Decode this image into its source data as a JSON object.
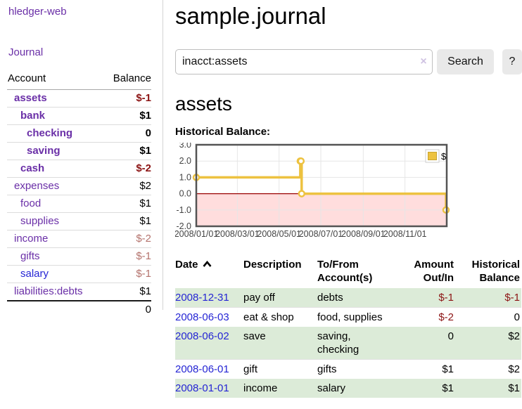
{
  "app_title": "hledger-web",
  "sidebar": {
    "journal_link": "Journal",
    "accounts": {
      "col_account": "Account",
      "col_balance": "Balance",
      "rows": [
        {
          "name": "assets",
          "balance": "$-1"
        },
        {
          "name": "bank",
          "balance": "$1"
        },
        {
          "name": "checking",
          "balance": "0"
        },
        {
          "name": "saving",
          "balance": "$1"
        },
        {
          "name": "cash",
          "balance": "$-2"
        },
        {
          "name": "expenses",
          "balance": "$2"
        },
        {
          "name": "food",
          "balance": "$1"
        },
        {
          "name": "supplies",
          "balance": "$1"
        },
        {
          "name": "income",
          "balance": "$-2"
        },
        {
          "name": "gifts",
          "balance": "$-1"
        },
        {
          "name": "salary",
          "balance": "$-1"
        },
        {
          "name": "liabilities:debts",
          "balance": "$1"
        }
      ],
      "total": "0"
    }
  },
  "main": {
    "title": "sample.journal",
    "search": {
      "value": "inacct:assets",
      "clear_icon": "×",
      "search_label": "Search",
      "help_label": "?"
    },
    "heading": "assets",
    "chart_label": "Historical Balance:",
    "register": {
      "col_date": "Date",
      "sort": "ascending",
      "col_description": "Description",
      "col_account": "To/From Account(s)",
      "col_amount": "Amount Out/In",
      "col_balance": "Historical Balance",
      "rows": [
        {
          "date": "2008-12-31",
          "description": "pay off",
          "accounts": "debts",
          "amount": "$-1",
          "balance": "$-1"
        },
        {
          "date": "2008-06-03",
          "description": "eat & shop",
          "accounts": "food, supplies",
          "amount": "$-2",
          "balance": "0"
        },
        {
          "date": "2008-06-02",
          "description": "save",
          "accounts": "saving, checking",
          "amount": "0",
          "balance": "$2"
        },
        {
          "date": "2008-06-01",
          "description": "gift",
          "accounts": "gifts",
          "amount": "$1",
          "balance": "$2"
        },
        {
          "date": "2008-01-01",
          "description": "income",
          "accounts": "salary",
          "amount": "$1",
          "balance": "$1"
        }
      ]
    }
  },
  "colors": {
    "link_purple": "#6a2fa7",
    "link_blue": "#2525d4",
    "negative_strong": "#8c1414",
    "negative_soft": "#b4736d",
    "row_stripe_green": "#dcebd8",
    "button_gray": "#e9e9e9"
  },
  "chart_data": {
    "type": "line",
    "step": true,
    "title": "Historical Balance",
    "xlabel": "",
    "ylabel": "",
    "grid": true,
    "legend_position": "top-right",
    "x_range": [
      "2008-01-01",
      "2009-01-01"
    ],
    "ylim": [
      -2.0,
      3.0
    ],
    "y_ticks": [
      -2,
      -1,
      0,
      1,
      2,
      3
    ],
    "y_tick_labels": [
      "-2.0",
      "-1.0",
      "0.0",
      "1.0",
      "2.0",
      "3.0"
    ],
    "x_ticks": [
      {
        "date": "2008-01-01",
        "label": "2008/01/01"
      },
      {
        "date": "2008-03-01",
        "label": "2008/03/01"
      },
      {
        "date": "2008-05-01",
        "label": "2008/05/01"
      },
      {
        "date": "2008-07-01",
        "label": "2008/07/01"
      },
      {
        "date": "2008-09-01",
        "label": "2008/09/01"
      },
      {
        "date": "2008-11-01",
        "label": "2008/11/01"
      }
    ],
    "series": [
      {
        "name": "$",
        "points": [
          {
            "date": "2008-01-01",
            "value": 1
          },
          {
            "date": "2008-06-01",
            "value": 2
          },
          {
            "date": "2008-06-02",
            "value": 2
          },
          {
            "date": "2008-06-03",
            "value": 0
          },
          {
            "date": "2008-12-31",
            "value": -1
          }
        ]
      }
    ],
    "colors": {
      "series": "#edc240",
      "marker_fill": "#ffffff",
      "negative_region": "#ffdddd",
      "zero_line": "#990000",
      "grid": "#e6e6e6",
      "border": "#545454",
      "tick_text": "#444444"
    }
  }
}
